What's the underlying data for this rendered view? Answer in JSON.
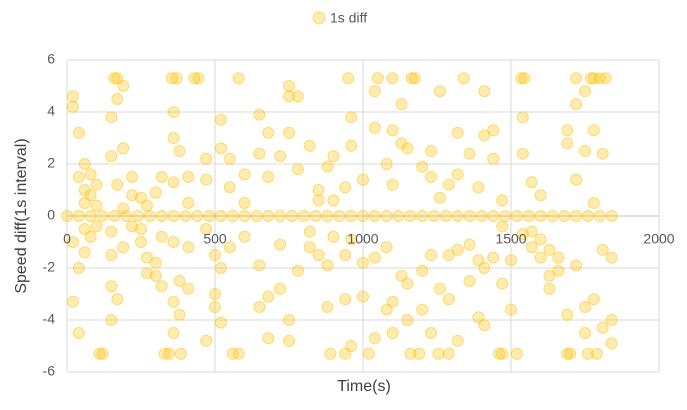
{
  "chart_data": {
    "type": "scatter",
    "x_label": "Time(s)",
    "y_label": "Speed diff(1s interval)",
    "xlim": [
      0,
      2000
    ],
    "xticks": [
      0,
      500,
      1000,
      1500,
      2000
    ],
    "ylim": [
      -6,
      6
    ],
    "yticks": [
      -6,
      -4,
      -2,
      0,
      2,
      4,
      6
    ],
    "grid": true,
    "legend": "top",
    "series": [
      {
        "name": "1s diff",
        "color": "#FFC000",
        "x": [
          0,
          40,
          80,
          120,
          160,
          200,
          240,
          280,
          320,
          360,
          400,
          440,
          480,
          520,
          560,
          600,
          640,
          680,
          720,
          760,
          800,
          840,
          880,
          920,
          960,
          1000,
          1040,
          1080,
          1120,
          1160,
          1200,
          1240,
          1280,
          1320,
          1360,
          1400,
          1440,
          1480,
          1520,
          1560,
          1600,
          1640,
          1680,
          1720,
          1760,
          1800,
          1840,
          160,
          170,
          355,
          370,
          430,
          445,
          580,
          950,
          1050,
          1100,
          1165,
          1175,
          1340,
          1535,
          1545,
          1720,
          1770,
          1780,
          1800,
          1820,
          110,
          120,
          330,
          345,
          385,
          560,
          580,
          890,
          940,
          1020,
          1160,
          1190,
          1255,
          1290,
          1460,
          1470,
          1520,
          1690,
          1700,
          1760,
          1790,
          20,
          20,
          20,
          20,
          40,
          40,
          40,
          40,
          60,
          60,
          60,
          60,
          60,
          80,
          80,
          80,
          100,
          100,
          100,
          150,
          150,
          150,
          150,
          150,
          150,
          170,
          170,
          170,
          190,
          190,
          190,
          190,
          220,
          220,
          220,
          250,
          250,
          250,
          270,
          270,
          270,
          300,
          300,
          300,
          320,
          320,
          320,
          360,
          360,
          360,
          360,
          360,
          360,
          380,
          380,
          380,
          410,
          410,
          410,
          410,
          470,
          470,
          470,
          470,
          500,
          500,
          500,
          520,
          520,
          520,
          520,
          550,
          550,
          550,
          600,
          600,
          600,
          650,
          650,
          650,
          650,
          680,
          680,
          680,
          680,
          720,
          720,
          720,
          750,
          750,
          750,
          750,
          750,
          780,
          780,
          780,
          820,
          820,
          820,
          850,
          850,
          850,
          880,
          880,
          880,
          900,
          900,
          900,
          940,
          940,
          940,
          960,
          960,
          960,
          960,
          1000,
          1000,
          1000,
          1040,
          1040,
          1040,
          1040,
          1080,
          1080,
          1080,
          1100,
          1100,
          1100,
          1100,
          1130,
          1130,
          1130,
          1150,
          1150,
          1150,
          1200,
          1200,
          1200,
          1230,
          1230,
          1230,
          1230,
          1260,
          1260,
          1260,
          1290,
          1290,
          1290,
          1320,
          1320,
          1320,
          1320,
          1360,
          1360,
          1360,
          1390,
          1390,
          1390,
          1410,
          1410,
          1410,
          1410,
          1440,
          1440,
          1440,
          1470,
          1470,
          1470,
          1500,
          1500,
          1540,
          1540,
          1540,
          1570,
          1570,
          1570,
          1600,
          1600,
          1600,
          1630,
          1630,
          1630,
          1660,
          1660,
          1690,
          1690,
          1690,
          1720,
          1720,
          1720,
          1750,
          1750,
          1750,
          1750,
          1780,
          1780,
          1780,
          1810,
          1810,
          1810,
          1840,
          1840,
          1840
        ],
        "values": [
          0,
          0,
          0,
          0,
          0,
          0,
          0,
          0,
          0,
          0,
          0,
          0,
          0,
          0,
          0,
          0,
          0,
          0,
          0,
          0,
          0,
          0,
          0,
          0,
          0,
          0,
          0,
          0,
          0,
          0,
          0,
          0,
          0,
          0,
          0,
          0,
          0,
          0,
          0,
          0,
          0,
          0,
          0,
          0,
          0,
          0,
          0,
          5.3,
          5.3,
          5.3,
          5.3,
          5.3,
          5.3,
          5.3,
          5.3,
          5.3,
          5.3,
          5.3,
          5.3,
          5.3,
          5.3,
          5.3,
          5.3,
          5.3,
          5.3,
          5.3,
          5.3,
          -5.3,
          -5.3,
          -5.3,
          -5.3,
          -5.3,
          -5.3,
          -5.3,
          -5.3,
          -5.3,
          -5.3,
          -5.3,
          -5.3,
          -5.3,
          -5.3,
          -5.3,
          -5.3,
          -5.3,
          -5.3,
          -5.3,
          -5.3,
          -5.3,
          4.6,
          4.2,
          -1,
          -3.3,
          3.2,
          1.5,
          -2,
          -4.5,
          2,
          1,
          0.5,
          -0.5,
          -1.4,
          0.8,
          -0.8,
          1.6,
          1.2,
          -0.4,
          0.4,
          2.3,
          3.8,
          -0.6,
          -1.5,
          -2.7,
          -4,
          4.5,
          1.2,
          -3.2,
          5,
          2.6,
          0.3,
          -1.2,
          1.5,
          -0.4,
          0.8,
          -0.5,
          0.7,
          -1,
          -1.6,
          -2.2,
          0.4,
          -1.8,
          -2.3,
          0.9,
          -2.7,
          -0.8,
          1.5,
          4,
          3,
          1.3,
          -1,
          -3.3,
          -4.5,
          2.5,
          -2.5,
          -3.8,
          1.5,
          0.5,
          -1.2,
          -2.8,
          2.2,
          1.4,
          -0.5,
          -4.8,
          -1.5,
          -3,
          -3.5,
          3.7,
          2.6,
          -2,
          -4.1,
          2.2,
          1.1,
          -1.2,
          1.6,
          0.5,
          -0.8,
          3.9,
          2.4,
          -1.9,
          -3.5,
          3.2,
          1.5,
          -3.1,
          -4.7,
          2.3,
          -1.1,
          -2.8,
          5,
          4.6,
          3.2,
          -4,
          -4.8,
          4.6,
          1.8,
          -2.1,
          2.7,
          -1.2,
          -0.6,
          1,
          0.6,
          -1.5,
          1.9,
          -1.9,
          -3.5,
          2.3,
          0.6,
          -0.8,
          1.1,
          -1.5,
          -3.2,
          3.8,
          2.7,
          -0.9,
          -5,
          1.4,
          -1.8,
          -3.1,
          4.8,
          3.4,
          -1.6,
          -4.7,
          2,
          -1.2,
          -3.6,
          3.3,
          1.2,
          -3.3,
          -4.5,
          4.3,
          2.8,
          -2.3,
          2.6,
          -2.6,
          -4,
          1.9,
          -2.1,
          -3.6,
          2.5,
          1.5,
          -1.5,
          -4.5,
          4.8,
          0.7,
          -2.8,
          1.2,
          -1.5,
          -3.2,
          3.2,
          1.6,
          -1.3,
          -4.8,
          2.4,
          -1.1,
          -2.5,
          1.1,
          -1.7,
          -3.9,
          4.8,
          3.1,
          -2,
          -4.2,
          3.3,
          2.2,
          -1.6,
          0.6,
          -0.4,
          -2.6,
          -1.7,
          -3.6,
          3.8,
          2.4,
          -0.7,
          1.3,
          -0.6,
          -1.2,
          0.8,
          -0.9,
          -1.6,
          -1.3,
          -2.3,
          -2.8,
          -1.6,
          -2.1,
          3.3,
          2.8,
          -3.8,
          4.3,
          1.4,
          -1.9,
          4.8,
          2.5,
          -3.5,
          -4.5,
          3.3,
          0.5,
          -3.2,
          2.4,
          -1.3,
          -4.3,
          -1.6,
          -4,
          -4.9
        ]
      }
    ]
  }
}
